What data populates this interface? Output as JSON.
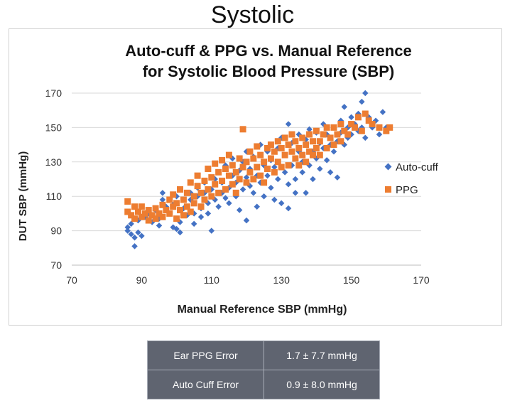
{
  "slide_title": "Systolic",
  "chart_data": {
    "type": "scatter",
    "title_lines": [
      "Auto-cuff & PPG vs. Manual Reference",
      "for Systolic Blood Pressure (SBP)"
    ],
    "xlabel": "Manual Reference SBP (mmHg)",
    "ylabel": "DUT  SBP (mmHg)",
    "xlim": [
      70,
      170
    ],
    "ylim": [
      70,
      170
    ],
    "xticks": [
      70,
      90,
      110,
      130,
      150,
      170
    ],
    "yticks": [
      70,
      90,
      110,
      130,
      150,
      170
    ],
    "grid": "horizontal",
    "legend_position": "right",
    "series": [
      {
        "name": "Auto-cuff",
        "marker": "diamond",
        "color": "#4472c4",
        "points": [
          [
            86,
            92
          ],
          [
            86,
            90
          ],
          [
            87,
            88
          ],
          [
            87,
            94
          ],
          [
            88,
            81
          ],
          [
            88,
            86
          ],
          [
            89,
            89
          ],
          [
            89,
            96
          ],
          [
            90,
            87
          ],
          [
            91,
            98
          ],
          [
            92,
            100
          ],
          [
            93,
            95
          ],
          [
            94,
            102
          ],
          [
            95,
            97
          ],
          [
            95,
            93
          ],
          [
            96,
            108
          ],
          [
            96,
            112
          ],
          [
            97,
            104
          ],
          [
            98,
            100
          ],
          [
            99,
            92
          ],
          [
            99,
            105
          ],
          [
            100,
            91
          ],
          [
            100,
            110
          ],
          [
            101,
            95
          ],
          [
            101,
            89
          ],
          [
            102,
            103
          ],
          [
            103,
            99
          ],
          [
            104,
            108
          ],
          [
            104,
            112
          ],
          [
            105,
            100
          ],
          [
            105,
            94
          ],
          [
            106,
            110
          ],
          [
            106,
            115
          ],
          [
            107,
            103
          ],
          [
            107,
            98
          ],
          [
            108,
            112
          ],
          [
            108,
            118
          ],
          [
            109,
            106
          ],
          [
            109,
            100
          ],
          [
            110,
            90
          ],
          [
            110,
            114
          ],
          [
            111,
            120
          ],
          [
            111,
            108
          ],
          [
            112,
            104
          ],
          [
            112,
            124
          ],
          [
            113,
            112
          ],
          [
            113,
            118
          ],
          [
            114,
            128
          ],
          [
            114,
            109
          ],
          [
            115,
            115
          ],
          [
            115,
            106
          ],
          [
            116,
            122
          ],
          [
            116,
            132
          ],
          [
            117,
            118
          ],
          [
            117,
            110
          ],
          [
            118,
            125
          ],
          [
            118,
            102
          ],
          [
            119,
            114
          ],
          [
            119,
            130
          ],
          [
            120,
            121
          ],
          [
            120,
            96
          ],
          [
            120,
            136
          ],
          [
            121,
            116
          ],
          [
            121,
            126
          ],
          [
            122,
            112
          ],
          [
            122,
            133
          ],
          [
            123,
            122
          ],
          [
            123,
            104
          ],
          [
            124,
            118
          ],
          [
            124,
            140
          ],
          [
            125,
            128
          ],
          [
            125,
            110
          ],
          [
            126,
            122
          ],
          [
            126,
            136
          ],
          [
            127,
            115
          ],
          [
            127,
            131
          ],
          [
            128,
            108
          ],
          [
            128,
            127
          ],
          [
            129,
            138
          ],
          [
            129,
            120
          ],
          [
            130,
            144
          ],
          [
            130,
            106
          ],
          [
            131,
            124
          ],
          [
            131,
            134
          ],
          [
            132,
            103
          ],
          [
            132,
            117
          ],
          [
            132,
            152
          ],
          [
            133,
            128
          ],
          [
            133,
            141
          ],
          [
            134,
            112
          ],
          [
            134,
            120
          ],
          [
            135,
            136
          ],
          [
            135,
            146
          ],
          [
            136,
            124
          ],
          [
            136,
            130
          ],
          [
            137,
            112
          ],
          [
            137,
            143
          ],
          [
            138,
            128
          ],
          [
            138,
            149
          ],
          [
            139,
            120
          ],
          [
            139,
            136
          ],
          [
            140,
            132
          ],
          [
            140,
            147
          ],
          [
            141,
            126
          ],
          [
            141,
            141
          ],
          [
            142,
            138
          ],
          [
            142,
            152
          ],
          [
            143,
            131
          ],
          [
            143,
            146
          ],
          [
            144,
            140
          ],
          [
            144,
            124
          ],
          [
            145,
            136
          ],
          [
            145,
            150
          ],
          [
            146,
            142
          ],
          [
            146,
            121
          ],
          [
            147,
            154
          ],
          [
            147,
            147
          ],
          [
            148,
            140
          ],
          [
            148,
            162
          ],
          [
            149,
            150
          ],
          [
            149,
            144
          ],
          [
            150,
            156
          ],
          [
            150,
            146
          ],
          [
            151,
            152
          ],
          [
            152,
            148
          ],
          [
            152,
            158
          ],
          [
            153,
            150
          ],
          [
            153,
            165
          ],
          [
            154,
            170
          ],
          [
            154,
            144
          ],
          [
            155,
            156
          ],
          [
            156,
            150
          ],
          [
            157,
            154
          ],
          [
            158,
            146
          ],
          [
            159,
            159
          ],
          [
            160,
            150
          ]
        ]
      },
      {
        "name": "PPG",
        "marker": "square",
        "color": "#ed7d31",
        "points": [
          [
            86,
            107
          ],
          [
            86,
            101
          ],
          [
            87,
            99
          ],
          [
            88,
            104
          ],
          [
            88,
            97
          ],
          [
            89,
            101
          ],
          [
            90,
            98
          ],
          [
            90,
            104
          ],
          [
            91,
            100
          ],
          [
            92,
            96
          ],
          [
            92,
            102
          ],
          [
            93,
            99
          ],
          [
            94,
            103
          ],
          [
            94,
            97
          ],
          [
            95,
            100
          ],
          [
            96,
            105
          ],
          [
            96,
            98
          ],
          [
            97,
            102
          ],
          [
            98,
            108
          ],
          [
            98,
            100
          ],
          [
            99,
            104
          ],
          [
            99,
            111
          ],
          [
            100,
            97
          ],
          [
            100,
            106
          ],
          [
            101,
            114
          ],
          [
            101,
            102
          ],
          [
            102,
            108
          ],
          [
            102,
            99
          ],
          [
            103,
            112
          ],
          [
            103,
            104
          ],
          [
            104,
            118
          ],
          [
            104,
            101
          ],
          [
            105,
            110
          ],
          [
            105,
            106
          ],
          [
            106,
            116
          ],
          [
            106,
            122
          ],
          [
            107,
            104
          ],
          [
            107,
            112
          ],
          [
            108,
            119
          ],
          [
            108,
            108
          ],
          [
            109,
            126
          ],
          [
            109,
            114
          ],
          [
            110,
            110
          ],
          [
            110,
            121
          ],
          [
            111,
            117
          ],
          [
            111,
            129
          ],
          [
            112,
            112
          ],
          [
            112,
            124
          ],
          [
            113,
            119
          ],
          [
            113,
            131
          ],
          [
            114,
            114
          ],
          [
            114,
            126
          ],
          [
            115,
            122
          ],
          [
            115,
            134
          ],
          [
            116,
            117
          ],
          [
            116,
            128
          ],
          [
            117,
            124
          ],
          [
            117,
            112
          ],
          [
            118,
            132
          ],
          [
            118,
            120
          ],
          [
            119,
            127
          ],
          [
            119,
            149
          ],
          [
            120,
            118
          ],
          [
            120,
            130
          ],
          [
            121,
            124
          ],
          [
            121,
            136
          ],
          [
            122,
            120
          ],
          [
            122,
            132
          ],
          [
            123,
            127
          ],
          [
            123,
            139
          ],
          [
            124,
            122
          ],
          [
            124,
            134
          ],
          [
            125,
            130
          ],
          [
            125,
            118
          ],
          [
            126,
            138
          ],
          [
            126,
            126
          ],
          [
            127,
            132
          ],
          [
            127,
            140
          ],
          [
            128,
            124
          ],
          [
            128,
            136
          ],
          [
            129,
            130
          ],
          [
            129,
            142
          ],
          [
            130,
            127
          ],
          [
            130,
            138
          ],
          [
            131,
            134
          ],
          [
            131,
            144
          ],
          [
            132,
            128
          ],
          [
            132,
            140
          ],
          [
            133,
            136
          ],
          [
            133,
            146
          ],
          [
            134,
            132
          ],
          [
            134,
            142
          ],
          [
            135,
            138
          ],
          [
            135,
            128
          ],
          [
            136,
            144
          ],
          [
            136,
            134
          ],
          [
            137,
            140
          ],
          [
            137,
            130
          ],
          [
            138,
            146
          ],
          [
            138,
            136
          ],
          [
            139,
            142
          ],
          [
            139,
            134
          ],
          [
            140,
            138
          ],
          [
            140,
            148
          ],
          [
            141,
            142
          ],
          [
            141,
            134
          ],
          [
            142,
            146
          ],
          [
            143,
            138
          ],
          [
            143,
            150
          ],
          [
            144,
            144
          ],
          [
            145,
            140
          ],
          [
            145,
            150
          ],
          [
            146,
            146
          ],
          [
            147,
            142
          ],
          [
            147,
            152
          ],
          [
            148,
            148
          ],
          [
            149,
            146
          ],
          [
            150,
            152
          ],
          [
            151,
            150
          ],
          [
            152,
            156
          ],
          [
            153,
            148
          ],
          [
            154,
            158
          ],
          [
            155,
            154
          ],
          [
            156,
            152
          ],
          [
            158,
            150
          ],
          [
            160,
            148
          ],
          [
            161,
            150
          ]
        ]
      }
    ]
  },
  "error_table": {
    "rows": [
      {
        "label": "Ear PPG Error",
        "value": "1.7 ± 7.7 mmHg"
      },
      {
        "label": "Auto Cuff Error",
        "value": "0.9 ± 8.0 mmHg"
      }
    ]
  }
}
